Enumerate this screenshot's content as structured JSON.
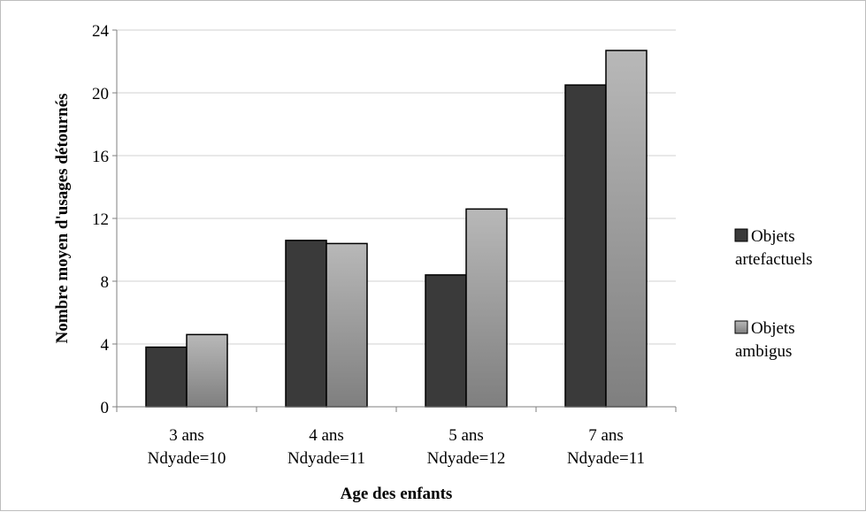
{
  "chart_data": {
    "type": "bar",
    "title": "",
    "xlabel": "Age des enfants",
    "ylabel": "Nombre moyen  d'usages détournés",
    "ylim": [
      0,
      24
    ],
    "yticks": [
      "0",
      "4",
      "8",
      "12",
      "16",
      "20",
      "24"
    ],
    "categories": [
      [
        "3 ans",
        "Ndyade=10"
      ],
      [
        "4 ans",
        "Ndyade=11"
      ],
      [
        "5 ans",
        "Ndyade=12"
      ],
      [
        "7 ans",
        "Ndyade=11"
      ]
    ],
    "series": [
      {
        "name": [
          "Objets",
          "artefactuels"
        ],
        "values": [
          3.8,
          10.6,
          8.4,
          20.5
        ]
      },
      {
        "name": [
          "Objets",
          "ambigus"
        ],
        "values": [
          4.6,
          10.4,
          12.6,
          22.7
        ]
      }
    ],
    "grid": "horizontal",
    "legend": "right",
    "colors": {
      "series": [
        {
          "top": "#3a3a3a",
          "bottom": "#3a3a3a"
        },
        {
          "top": "#b8b8b8",
          "bottom": "#7f7f7f"
        }
      ],
      "grid": "#d0d0d0",
      "axis": "#7f7f7f"
    }
  }
}
